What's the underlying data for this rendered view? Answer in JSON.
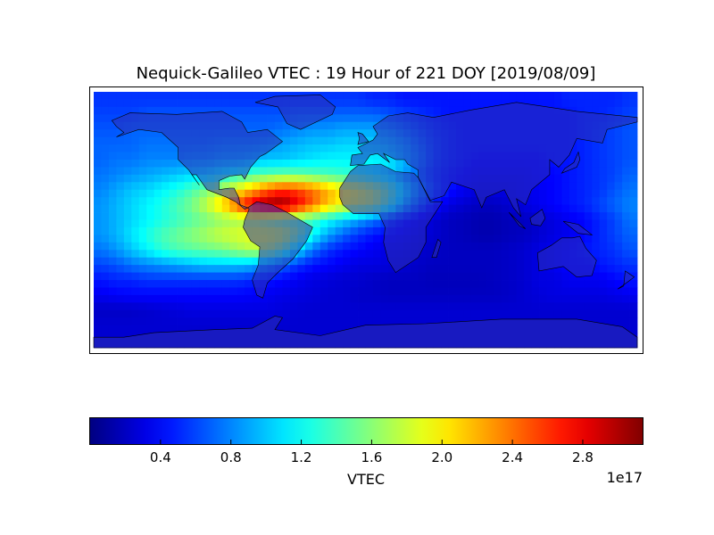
{
  "chart_data": {
    "type": "heatmap",
    "title": "Nequick-Galileo VTEC : 19 Hour of 221 DOY [2019/08/09]",
    "projection": "cylindrical world map with coastlines and country borders",
    "colormap": "jet",
    "value_units_multiplier": "1e17",
    "vmin": 0.0,
    "vmax": 3.14,
    "lon": [
      -175,
      -165,
      -155,
      -145,
      -135,
      -125,
      -115,
      -105,
      -95,
      -85,
      -75,
      -65,
      -55,
      -45,
      -35,
      -25,
      -15,
      -5,
      5,
      15,
      25,
      35,
      45,
      55,
      65,
      75,
      85,
      95,
      105,
      115,
      125,
      135,
      145,
      155,
      165,
      175
    ],
    "lat": [
      80,
      70,
      60,
      50,
      40,
      30,
      20,
      10,
      0,
      -10,
      -20,
      -30,
      -40,
      -50,
      -60,
      -70,
      -80
    ],
    "values": [
      [
        0.55,
        0.55,
        0.55,
        0.55,
        0.55,
        0.55,
        0.55,
        0.55,
        0.55,
        0.55,
        0.55,
        0.55,
        0.55,
        0.55,
        0.55,
        0.55,
        0.55,
        0.55,
        0.5,
        0.5,
        0.45,
        0.45,
        0.45,
        0.45,
        0.45,
        0.45,
        0.45,
        0.45,
        0.45,
        0.45,
        0.45,
        0.5,
        0.5,
        0.5,
        0.5,
        0.55
      ],
      [
        0.6,
        0.6,
        0.6,
        0.65,
        0.65,
        0.65,
        0.65,
        0.65,
        0.65,
        0.65,
        0.65,
        0.65,
        0.65,
        0.7,
        0.7,
        0.7,
        0.7,
        0.7,
        0.7,
        0.65,
        0.6,
        0.55,
        0.5,
        0.45,
        0.45,
        0.45,
        0.45,
        0.45,
        0.45,
        0.45,
        0.45,
        0.45,
        0.5,
        0.5,
        0.55,
        0.6
      ],
      [
        0.65,
        0.65,
        0.7,
        0.7,
        0.7,
        0.7,
        0.7,
        0.7,
        0.7,
        0.7,
        0.7,
        0.7,
        0.75,
        0.8,
        0.85,
        0.85,
        0.9,
        0.9,
        0.9,
        0.85,
        0.75,
        0.65,
        0.55,
        0.5,
        0.45,
        0.45,
        0.45,
        0.45,
        0.45,
        0.45,
        0.45,
        0.45,
        0.5,
        0.55,
        0.6,
        0.65
      ],
      [
        0.7,
        0.7,
        0.7,
        0.75,
        0.75,
        0.75,
        0.75,
        0.75,
        0.8,
        0.8,
        0.8,
        0.85,
        0.9,
        0.95,
        1.0,
        1.0,
        1.05,
        1.05,
        1.05,
        1.0,
        0.9,
        0.75,
        0.6,
        0.5,
        0.45,
        0.45,
        0.45,
        0.45,
        0.45,
        0.45,
        0.45,
        0.45,
        0.5,
        0.55,
        0.6,
        0.65
      ],
      [
        0.7,
        0.75,
        0.75,
        0.8,
        0.8,
        0.8,
        0.85,
        0.85,
        0.9,
        0.9,
        0.95,
        1.0,
        1.0,
        1.05,
        1.1,
        1.15,
        1.15,
        1.15,
        1.15,
        1.1,
        0.95,
        0.8,
        0.6,
        0.5,
        0.45,
        0.4,
        0.4,
        0.4,
        0.4,
        0.4,
        0.45,
        0.45,
        0.5,
        0.55,
        0.6,
        0.65
      ],
      [
        0.75,
        0.8,
        0.85,
        0.9,
        0.95,
        1.0,
        1.05,
        1.1,
        1.2,
        1.3,
        1.4,
        1.45,
        1.5,
        1.5,
        1.45,
        1.4,
        1.35,
        1.3,
        1.2,
        1.1,
        0.9,
        0.7,
        0.55,
        0.45,
        0.4,
        0.35,
        0.35,
        0.35,
        0.35,
        0.4,
        0.4,
        0.45,
        0.5,
        0.55,
        0.6,
        0.7
      ],
      [
        0.8,
        0.9,
        1.0,
        1.05,
        1.15,
        1.25,
        1.4,
        1.55,
        1.75,
        1.95,
        2.2,
        2.45,
        2.6,
        2.55,
        2.4,
        2.2,
        2.0,
        1.9,
        1.75,
        1.5,
        1.15,
        0.85,
        0.6,
        0.45,
        0.35,
        0.3,
        0.3,
        0.3,
        0.35,
        0.35,
        0.4,
        0.45,
        0.5,
        0.55,
        0.65,
        0.75
      ],
      [
        0.85,
        0.95,
        1.05,
        1.15,
        1.25,
        1.4,
        1.55,
        1.8,
        2.1,
        2.5,
        2.85,
        3.05,
        3.1,
        2.8,
        2.45,
        2.15,
        1.95,
        1.85,
        1.75,
        1.4,
        1.0,
        0.7,
        0.45,
        0.3,
        0.25,
        0.2,
        0.2,
        0.25,
        0.3,
        0.35,
        0.4,
        0.45,
        0.5,
        0.6,
        0.7,
        0.8
      ],
      [
        0.85,
        0.95,
        1.05,
        1.15,
        1.25,
        1.35,
        1.45,
        1.55,
        1.65,
        1.7,
        1.75,
        1.65,
        1.55,
        1.45,
        1.35,
        1.2,
        1.05,
        0.9,
        0.75,
        0.6,
        0.45,
        0.35,
        0.25,
        0.2,
        0.18,
        0.15,
        0.15,
        0.18,
        0.2,
        0.25,
        0.3,
        0.35,
        0.4,
        0.5,
        0.6,
        0.75
      ],
      [
        0.85,
        0.95,
        1.1,
        1.25,
        1.4,
        1.5,
        1.6,
        1.7,
        1.8,
        1.85,
        1.9,
        1.9,
        1.85,
        1.6,
        1.2,
        0.9,
        0.7,
        0.55,
        0.45,
        0.4,
        0.35,
        0.3,
        0.25,
        0.2,
        0.18,
        0.15,
        0.15,
        0.18,
        0.2,
        0.25,
        0.3,
        0.35,
        0.4,
        0.5,
        0.6,
        0.7
      ],
      [
        0.75,
        0.85,
        1.0,
        1.15,
        1.3,
        1.4,
        1.45,
        1.5,
        1.55,
        1.65,
        1.75,
        1.75,
        1.5,
        1.1,
        0.75,
        0.55,
        0.45,
        0.4,
        0.35,
        0.3,
        0.3,
        0.25,
        0.22,
        0.2,
        0.2,
        0.2,
        0.2,
        0.22,
        0.25,
        0.3,
        0.35,
        0.4,
        0.45,
        0.5,
        0.55,
        0.65
      ],
      [
        0.6,
        0.65,
        0.75,
        0.8,
        0.85,
        0.9,
        0.95,
        1.0,
        1.0,
        1.0,
        0.95,
        0.85,
        0.7,
        0.55,
        0.45,
        0.4,
        0.35,
        0.3,
        0.3,
        0.28,
        0.25,
        0.22,
        0.2,
        0.2,
        0.2,
        0.2,
        0.2,
        0.22,
        0.25,
        0.3,
        0.35,
        0.4,
        0.4,
        0.45,
        0.5,
        0.55
      ],
      [
        0.45,
        0.5,
        0.5,
        0.55,
        0.55,
        0.55,
        0.55,
        0.55,
        0.55,
        0.55,
        0.5,
        0.45,
        0.4,
        0.35,
        0.3,
        0.28,
        0.25,
        0.25,
        0.22,
        0.2,
        0.2,
        0.2,
        0.18,
        0.18,
        0.18,
        0.18,
        0.2,
        0.22,
        0.25,
        0.3,
        0.3,
        0.35,
        0.35,
        0.35,
        0.4,
        0.45
      ],
      [
        0.35,
        0.38,
        0.4,
        0.4,
        0.4,
        0.4,
        0.4,
        0.4,
        0.4,
        0.4,
        0.38,
        0.35,
        0.32,
        0.3,
        0.28,
        0.25,
        0.25,
        0.22,
        0.22,
        0.2,
        0.2,
        0.2,
        0.2,
        0.2,
        0.2,
        0.2,
        0.2,
        0.22,
        0.25,
        0.28,
        0.3,
        0.3,
        0.3,
        0.3,
        0.32,
        0.35
      ],
      [
        0.22,
        0.22,
        0.22,
        0.24,
        0.26,
        0.28,
        0.3,
        0.3,
        0.3,
        0.3,
        0.3,
        0.3,
        0.28,
        0.26,
        0.25,
        0.25,
        0.25,
        0.25,
        0.25,
        0.25,
        0.25,
        0.25,
        0.25,
        0.25,
        0.25,
        0.25,
        0.25,
        0.25,
        0.25,
        0.25,
        0.25,
        0.25,
        0.25,
        0.25,
        0.25,
        0.25
      ],
      [
        0.25,
        0.25,
        0.25,
        0.25,
        0.25,
        0.25,
        0.25,
        0.25,
        0.25,
        0.25,
        0.25,
        0.25,
        0.25,
        0.25,
        0.25,
        0.25,
        0.25,
        0.25,
        0.25,
        0.25,
        0.25,
        0.25,
        0.25,
        0.25,
        0.25,
        0.25,
        0.25,
        0.25,
        0.25,
        0.25,
        0.25,
        0.25,
        0.25,
        0.25,
        0.25,
        0.25
      ],
      [
        0.25,
        0.25,
        0.25,
        0.25,
        0.25,
        0.25,
        0.25,
        0.25,
        0.25,
        0.25,
        0.25,
        0.25,
        0.25,
        0.25,
        0.25,
        0.25,
        0.25,
        0.25,
        0.25,
        0.25,
        0.25,
        0.25,
        0.25,
        0.25,
        0.25,
        0.25,
        0.25,
        0.25,
        0.25,
        0.25,
        0.25,
        0.25,
        0.25,
        0.25,
        0.25,
        0.25
      ]
    ],
    "colorbar": {
      "label": "VTEC",
      "exponent_label": "1e17",
      "ticks": [
        0.4,
        0.8,
        1.2,
        1.6,
        2.0,
        2.4,
        2.8
      ],
      "tick_labels": [
        "0.4",
        "0.8",
        "1.2",
        "1.6",
        "2.0",
        "2.4",
        "2.8"
      ],
      "orientation": "horizontal",
      "placement": "bottom"
    },
    "land_overlay_color": "#2c2fb4"
  }
}
